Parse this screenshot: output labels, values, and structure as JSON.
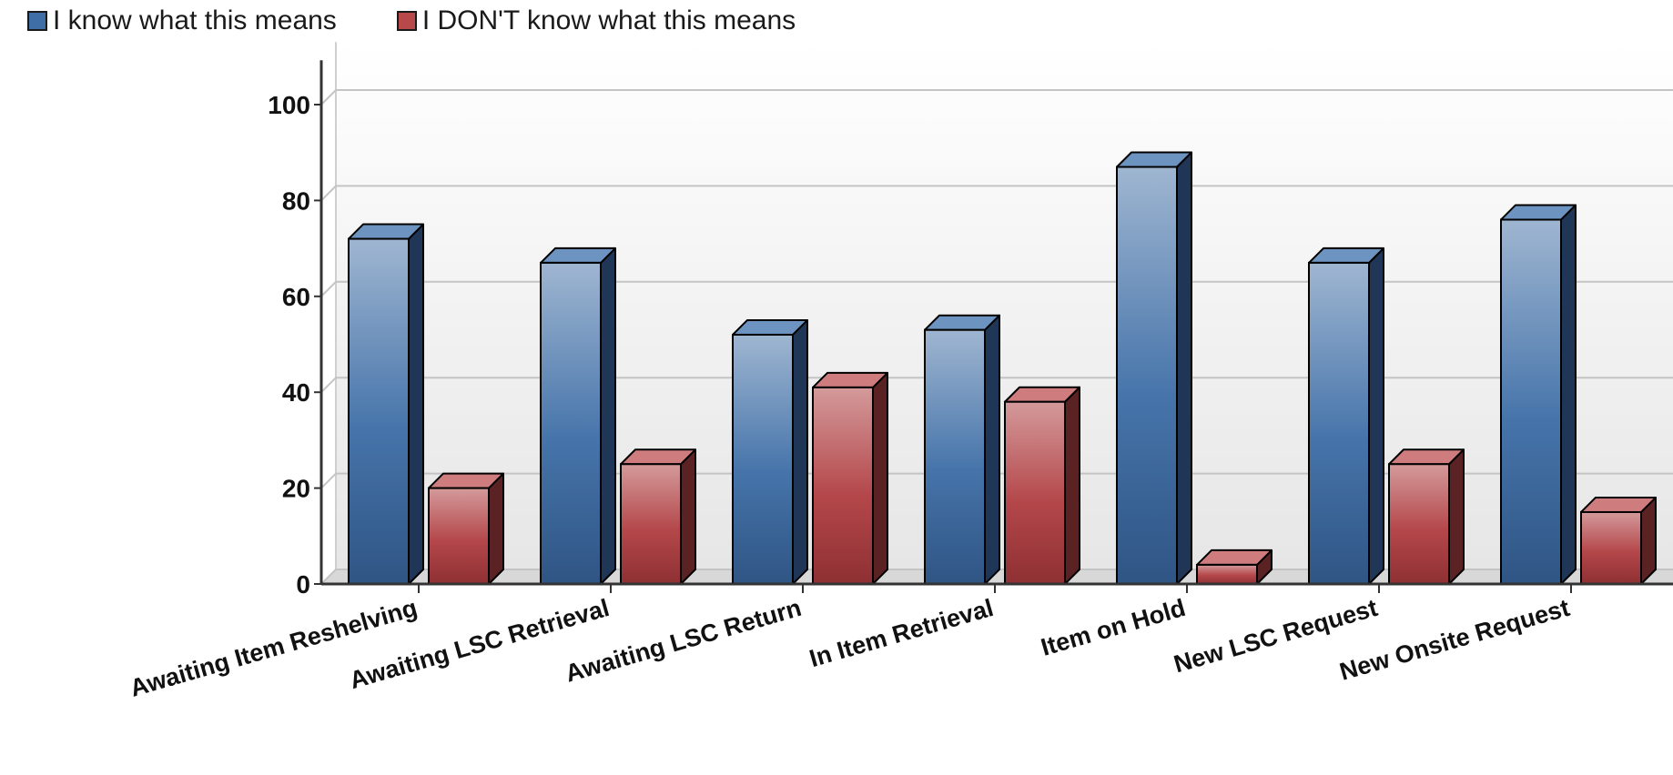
{
  "legend": {
    "items": [
      {
        "label": "I know what this means",
        "color": "#3f6ea6"
      },
      {
        "label": "I DON'T know what this means",
        "color": "#b8494a"
      }
    ]
  },
  "chart_data": {
    "type": "bar",
    "style": "3d-clustered-column",
    "title": "",
    "xlabel": "",
    "ylabel": "",
    "ylim": [
      0,
      110
    ],
    "yticks": [
      0,
      20,
      40,
      60,
      80,
      100
    ],
    "grid": true,
    "legend_position": "top-left",
    "categories": [
      "Awaiting Item Reshelving",
      "Awaiting LSC Retrieval",
      "Awaiting LSC Return",
      "In Item Retrieval",
      "Item on Hold",
      "New LSC Request",
      "New Onsite Request"
    ],
    "series": [
      {
        "name": "I know what this means",
        "color": "#3f6ea6",
        "values": [
          72,
          67,
          52,
          53,
          87,
          67,
          76
        ]
      },
      {
        "name": "I DON'T know what this means",
        "color": "#b8494a",
        "values": [
          20,
          25,
          41,
          38,
          4,
          25,
          15
        ]
      }
    ]
  }
}
